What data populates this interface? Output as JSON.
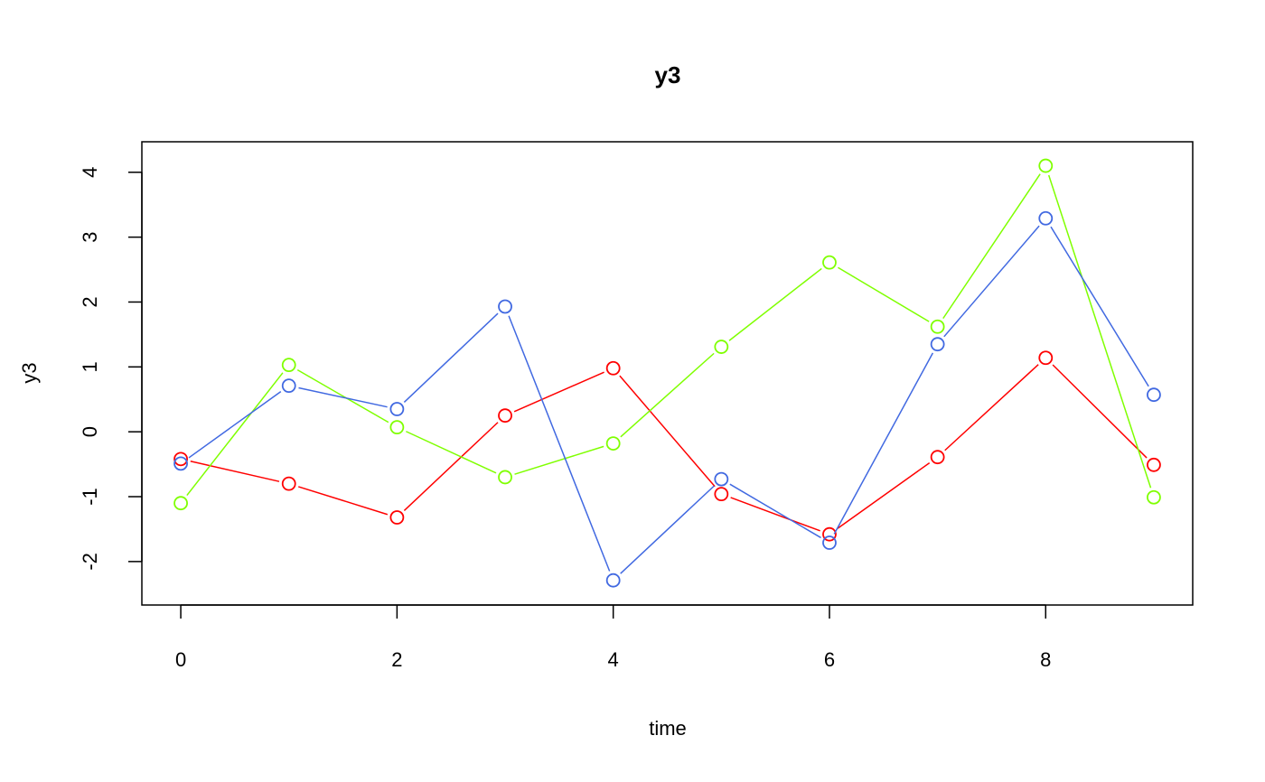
{
  "chart_data": {
    "type": "line",
    "title": "y3",
    "xlabel": "time",
    "ylabel": "y3",
    "xlim": [
      -0.36,
      9.36
    ],
    "ylim": [
      -2.67,
      4.47
    ],
    "x_ticks": [
      0,
      2,
      4,
      6,
      8
    ],
    "y_ticks": [
      -2,
      -1,
      0,
      1,
      2,
      3,
      4
    ],
    "grid": false,
    "legend": "none",
    "x": [
      0,
      1,
      2,
      3,
      4,
      5,
      6,
      7,
      8,
      9
    ],
    "series": [
      {
        "color": "#FF0000",
        "values": [
          -0.42,
          -0.8,
          -1.32,
          0.25,
          0.98,
          -0.96,
          -1.58,
          -0.39,
          1.14,
          -0.51
        ]
      },
      {
        "color": "#7FFF00",
        "values": [
          -1.1,
          1.03,
          0.07,
          -0.7,
          -0.18,
          1.31,
          2.61,
          1.62,
          4.1,
          -1.01
        ]
      },
      {
        "color": "#4169E1",
        "values": [
          -0.49,
          0.71,
          0.35,
          1.93,
          -2.29,
          -0.73,
          -1.71,
          1.35,
          3.29,
          0.57
        ]
      }
    ]
  }
}
